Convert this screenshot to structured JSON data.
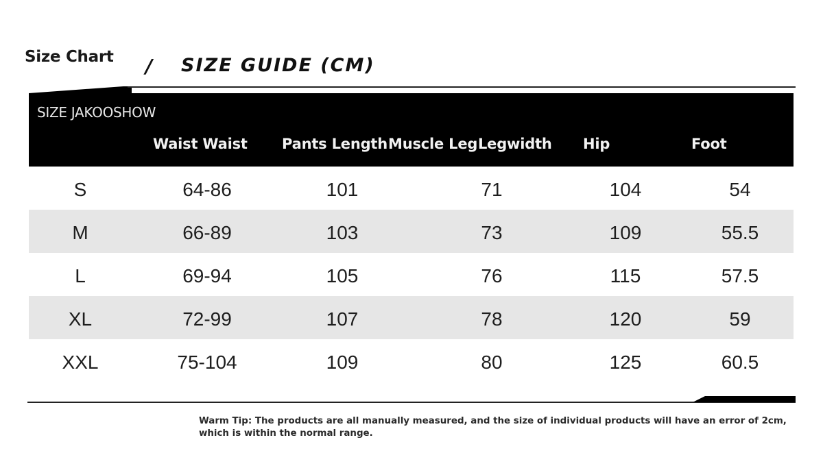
{
  "title": {
    "size_chart": "Size Chart",
    "slash": "/",
    "guide": "SIZE GUIDE (CM)"
  },
  "table": {
    "brand": "SIZE JAKOOSHOW",
    "headers": [
      "Waist Waist",
      "Pants Length",
      "Muscle Leg",
      "Legwidth",
      "Hip",
      "Foot"
    ],
    "rows": [
      [
        "S",
        "64-86",
        "101",
        "71",
        "104",
        "54"
      ],
      [
        "M",
        "66-89",
        "103",
        "73",
        "109",
        "55.5"
      ],
      [
        "L",
        "69-94",
        "105",
        "76",
        "115",
        "57.5"
      ],
      [
        "XL",
        "72-99",
        "107",
        "78",
        "120",
        "59"
      ],
      [
        "XXL",
        "75-104",
        "109",
        "80",
        "125",
        "60.5"
      ]
    ]
  },
  "tip": "Warm Tip: The products are all manually measured, and the size of individual products will have an error of 2cm, which is within the normal range."
}
